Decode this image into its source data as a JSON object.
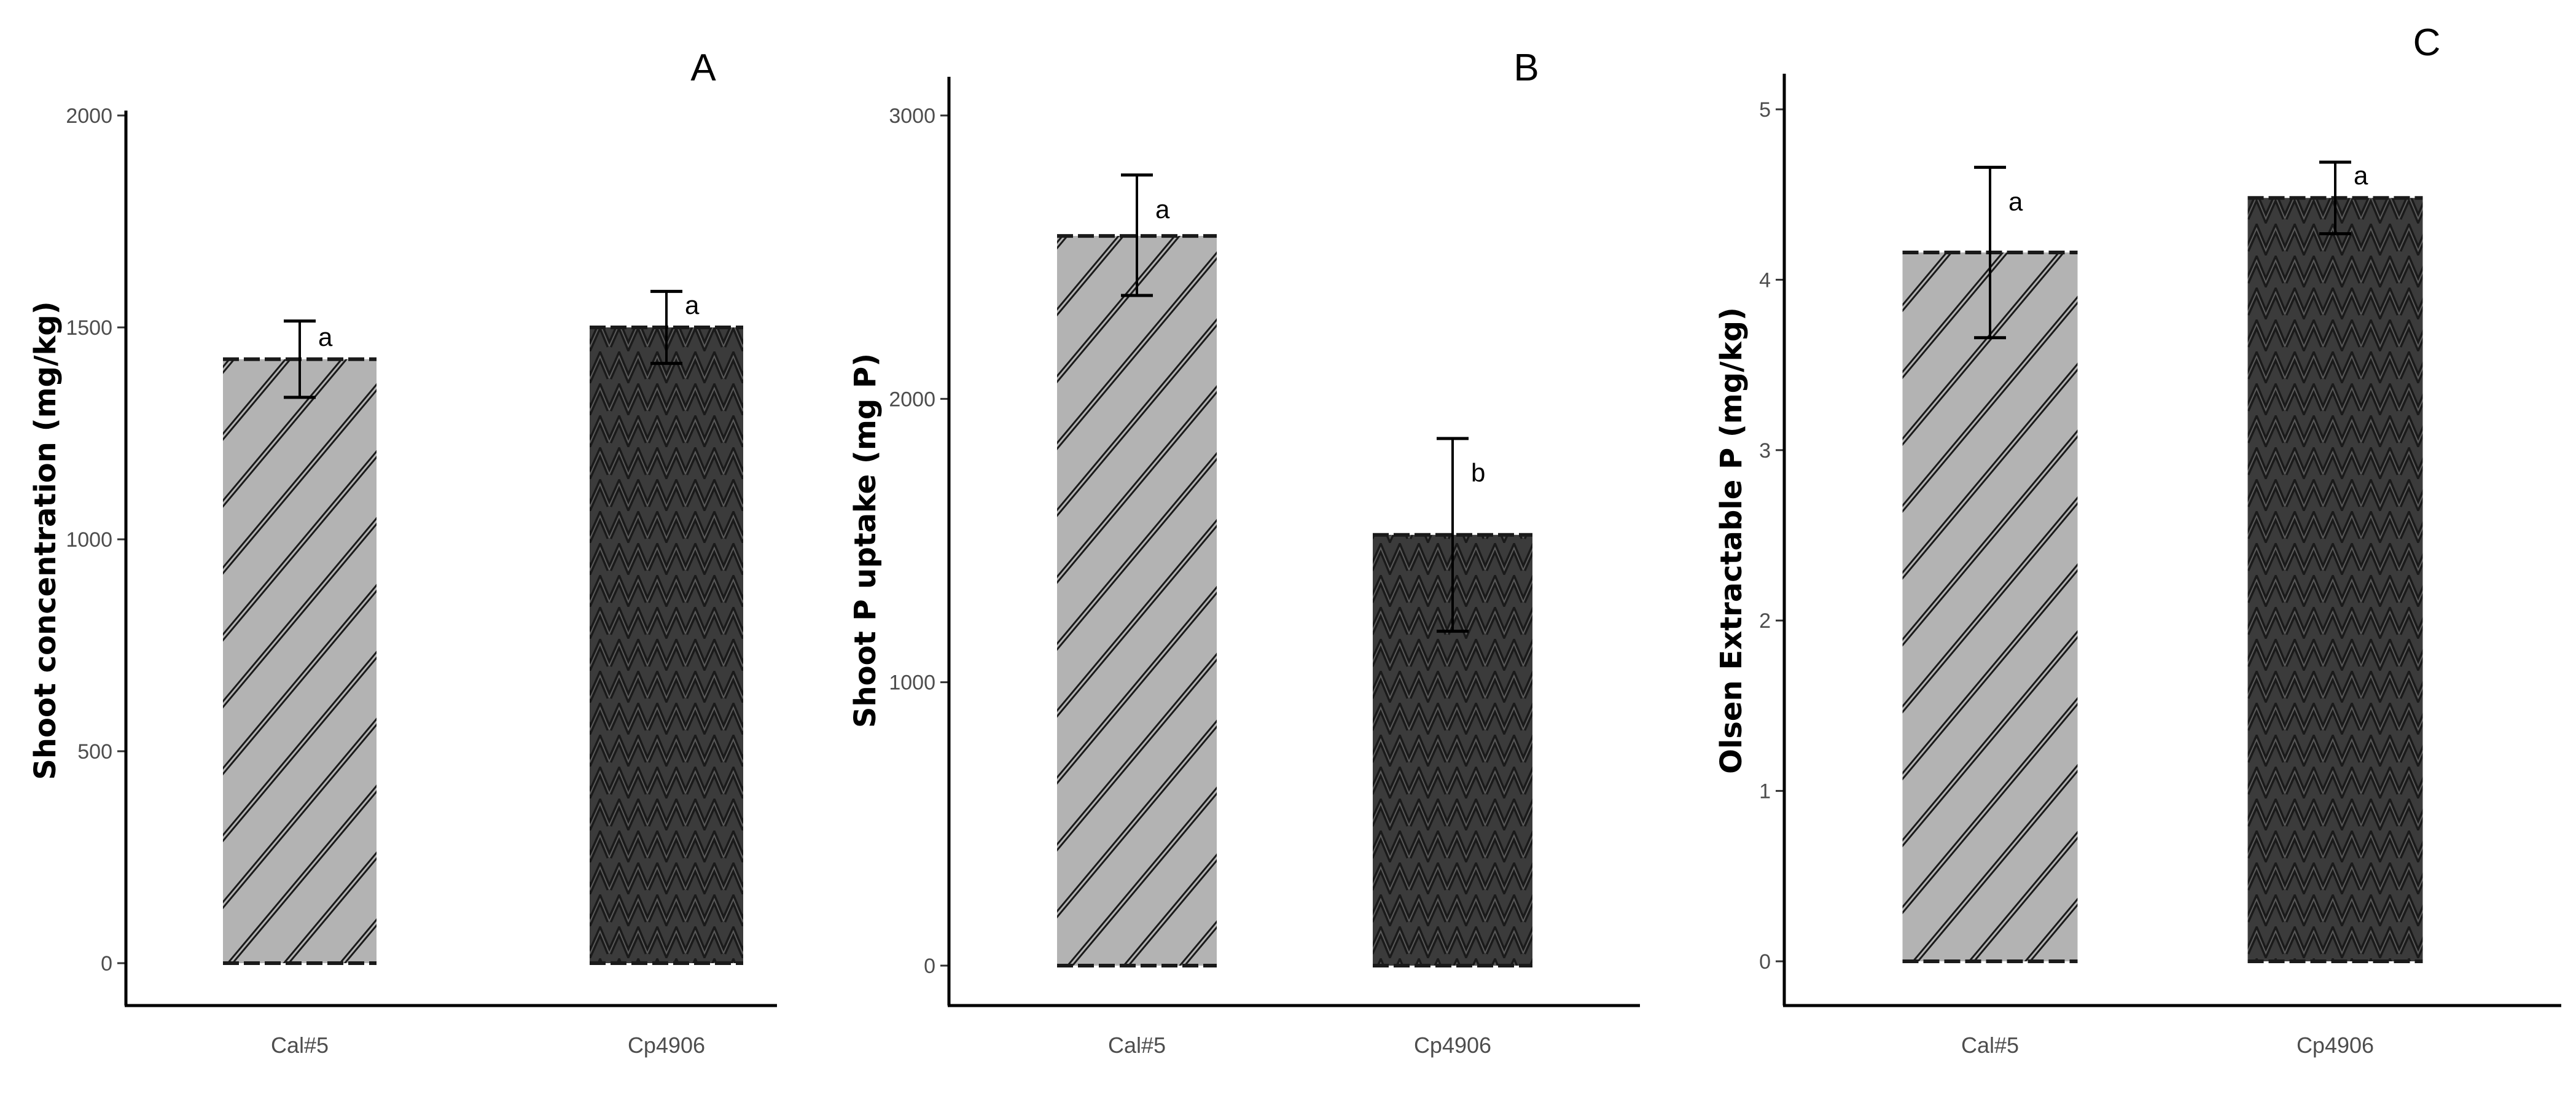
{
  "chart_data": [
    {
      "type": "bar",
      "panel": "A",
      "title": "",
      "xlabel": "",
      "ylabel": "Shoot concentration (mg/kg)",
      "categories": [
        "Cal#5",
        "Cp4906"
      ],
      "values": [
        1425,
        1500
      ],
      "errors": [
        [
          1335,
          1515
        ],
        [
          1415,
          1585
        ]
      ],
      "significance": [
        "a",
        "a"
      ],
      "ylim": [
        0,
        2000
      ],
      "yticks": [
        "0",
        "500",
        "1000",
        "1500",
        "2000"
      ],
      "ytick_values": [
        0,
        500,
        1000,
        1500,
        2000
      ]
    },
    {
      "type": "bar",
      "panel": "B",
      "title": "",
      "xlabel": "",
      "ylabel": "Shoot P uptake (mg P)",
      "categories": [
        "Cal#5",
        "Cp4906"
      ],
      "values": [
        2575,
        1520
      ],
      "errors": [
        [
          2365,
          2790
        ],
        [
          1180,
          1860
        ]
      ],
      "significance": [
        "a",
        "b"
      ],
      "ylim": [
        0,
        3000
      ],
      "yticks": [
        "0",
        "1000",
        "2000",
        "3000"
      ],
      "ytick_values": [
        0,
        1000,
        2000,
        3000
      ]
    },
    {
      "type": "bar",
      "panel": "C",
      "title": "",
      "xlabel": "",
      "ylabel": "Olsen Extractable P (mg/kg)",
      "categories": [
        "Cal#5",
        "Cp4906"
      ],
      "values": [
        4.16,
        4.48
      ],
      "errors": [
        [
          3.66,
          4.66
        ],
        [
          4.27,
          4.69
        ]
      ],
      "significance": [
        "a",
        "a"
      ],
      "ylim": [
        0,
        5
      ],
      "yticks": [
        "0",
        "1",
        "2",
        "3",
        "4",
        "5"
      ],
      "ytick_values": [
        0,
        1,
        2,
        3,
        4,
        5
      ]
    }
  ],
  "colors": {
    "bar_light": "#b3b3b3",
    "bar_dark": "#3b3b3b",
    "pattern_stroke": "#1a1a1a",
    "axis": "#000000",
    "error_bar": "#000000"
  }
}
